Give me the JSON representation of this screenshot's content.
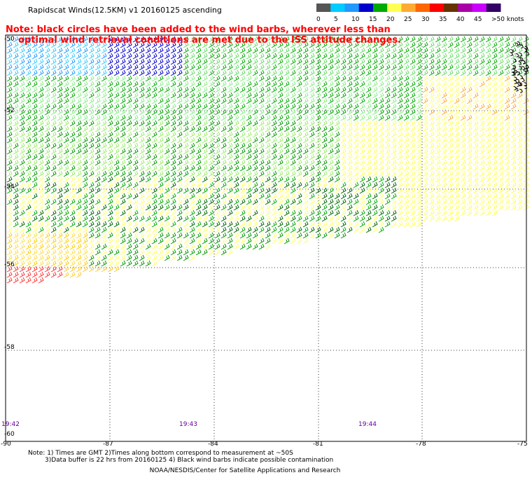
{
  "header": {
    "title": "Rapidscat Winds(12.5KM) v1 20160125 ascending",
    "note_line1": "Note: black circles have been added to the wind barbs, wherever less than",
    "note_line2": "    optimal wind retrieval conditions are met due to the ISS attitude changes."
  },
  "legend": {
    "colors": [
      "#555555",
      "#00ccff",
      "#2299ff",
      "#0000cc",
      "#00aa00",
      "#ffff55",
      "#ffaa33",
      "#ff6600",
      "#ff0000",
      "#663300",
      "#aa00aa",
      "#cc00ff",
      "#330066"
    ],
    "labels": [
      "0",
      "5",
      "10",
      "15",
      "20",
      "25",
      "30",
      "35",
      "40",
      "45",
      ">50 knots"
    ]
  },
  "map": {
    "lat_labels": [
      "-50",
      "-52",
      "-54",
      "-56",
      "-58",
      "-60"
    ],
    "lon_labels": [
      "-90",
      "-87",
      "-84",
      "-81",
      "-78",
      "-75"
    ],
    "time_labels": [
      "19:42",
      "19:43",
      "19:44"
    ]
  },
  "footer": {
    "line1": "Note: 1) Times are GMT 2)Times along bottom correspond to measurement at ~50S",
    "line2": "3)Data buffer is 22 hrs from 20160125 4) Black wind barbs indicate possible contamination",
    "line3": "NOAA/NESDIS/Center for Satellite Applications and Research"
  }
}
